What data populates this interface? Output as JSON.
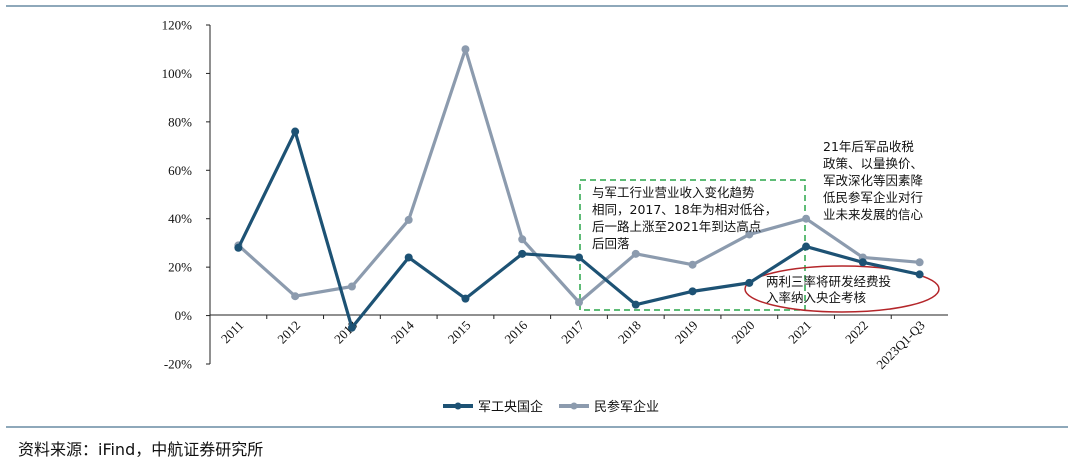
{
  "chart_data": {
    "type": "line",
    "categories": [
      "2011",
      "2012",
      "2013",
      "2014",
      "2015",
      "2016",
      "2017",
      "2018",
      "2019",
      "2020",
      "2021",
      "2022",
      "2023Q1-Q3"
    ],
    "ylim": [
      -20,
      120
    ],
    "yticks": [
      "-20%",
      "0%",
      "20%",
      "40%",
      "60%",
      "80%",
      "100%",
      "120%"
    ],
    "series": [
      {
        "name": "军工央国企",
        "color": "#1d5274",
        "values": [
          28,
          76,
          -5,
          24,
          7,
          25.5,
          24,
          4.5,
          10,
          13.5,
          28.5,
          22,
          17
        ]
      },
      {
        "name": "民参军企业",
        "color": "#8c9bae",
        "values": [
          29,
          8,
          12,
          39.5,
          110,
          31.5,
          5.5,
          25.5,
          21,
          33.5,
          40,
          24,
          22
        ]
      }
    ],
    "legend_position": "bottom-center",
    "annotations": [
      {
        "id": "box",
        "lines": [
          "与军工行业营业收入变化趋势",
          "相同，2017、18年为相对低谷，",
          "后一路上涨至2021年到达高点",
          "后回落"
        ]
      },
      {
        "id": "top-right",
        "lines": [
          "21年后军品收税",
          "政策、以量换价、",
          "军改深化等因素降",
          "低民参军企业对行",
          "业未来发展的信心"
        ]
      },
      {
        "id": "ellipse",
        "lines": [
          "两利三率将研发经费投",
          "入率纳入央企考核"
        ]
      }
    ]
  },
  "source_text": "资料来源：iFind，中航证券研究所",
  "colors": {
    "rule": "#1d5274",
    "box": "#2aa64a",
    "ellipse": "#b4262a"
  }
}
